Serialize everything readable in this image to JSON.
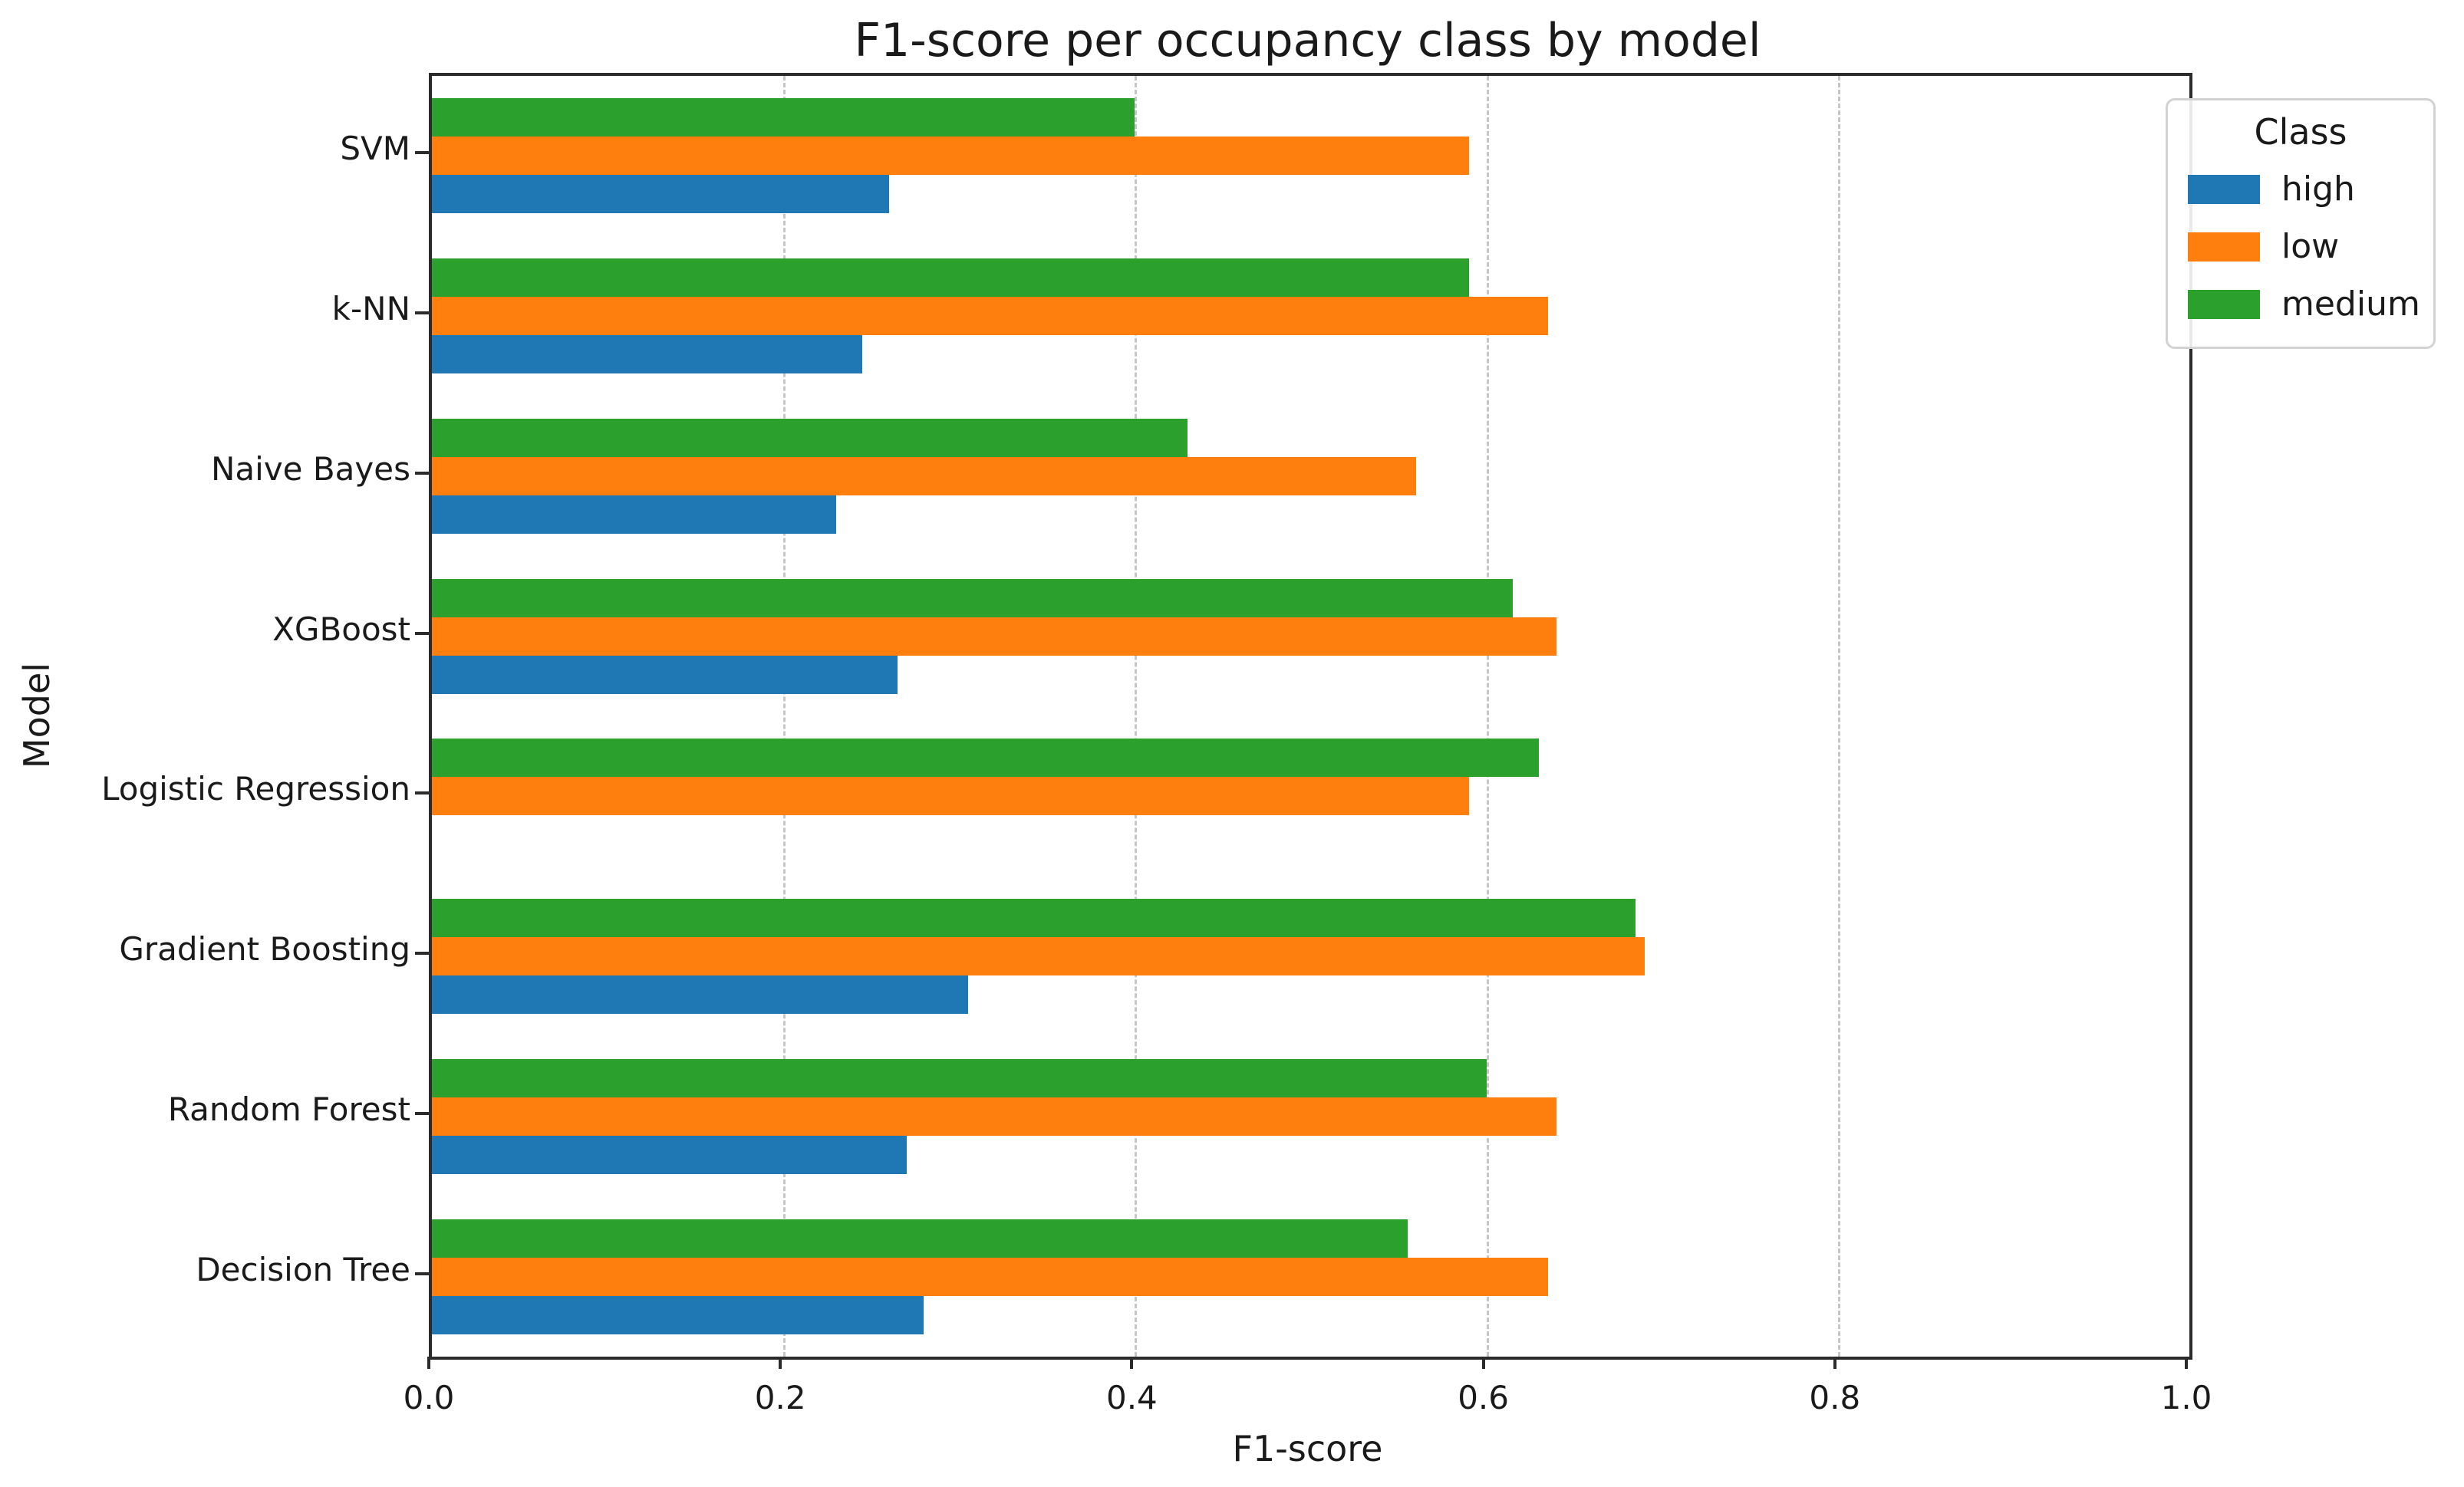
{
  "page": {
    "background": "#ffffff"
  },
  "chart_data": {
    "type": "bar",
    "orientation": "horizontal",
    "title": "F1-score per occupancy class by model",
    "xlabel": "F1-score",
    "ylabel": "Model",
    "xlim": [
      0.0,
      1.0
    ],
    "xticks": [
      0.0,
      0.2,
      0.4,
      0.6,
      0.8,
      1.0
    ],
    "xtick_labels": [
      "0.0",
      "0.2",
      "0.4",
      "0.6",
      "0.8",
      "1.0"
    ],
    "grid": {
      "axis": "x",
      "style": "dashed",
      "color": "#c6c6c6",
      "interior_ticks_only": true
    },
    "categories_top_to_bottom": [
      "SVM",
      "k-NN",
      "Naive Bayes",
      "XGBoost",
      "Logistic Regression",
      "Gradient Boosting",
      "Random Forest",
      "Decision Tree"
    ],
    "bar_order_within_group_top_to_bottom": [
      "medium",
      "low",
      "high"
    ],
    "series": [
      {
        "name": "high",
        "color": "#1f77b4",
        "values": [
          0.26,
          0.245,
          0.23,
          0.265,
          0.0,
          0.305,
          0.27,
          0.28
        ]
      },
      {
        "name": "low",
        "color": "#ff7f0e",
        "values": [
          0.59,
          0.635,
          0.56,
          0.64,
          0.59,
          0.69,
          0.64,
          0.635
        ]
      },
      {
        "name": "medium",
        "color": "#2ca02c",
        "values": [
          0.4,
          0.59,
          0.43,
          0.615,
          0.63,
          0.685,
          0.6,
          0.555
        ]
      }
    ],
    "legend": {
      "title": "Class",
      "position": "upper right"
    }
  }
}
